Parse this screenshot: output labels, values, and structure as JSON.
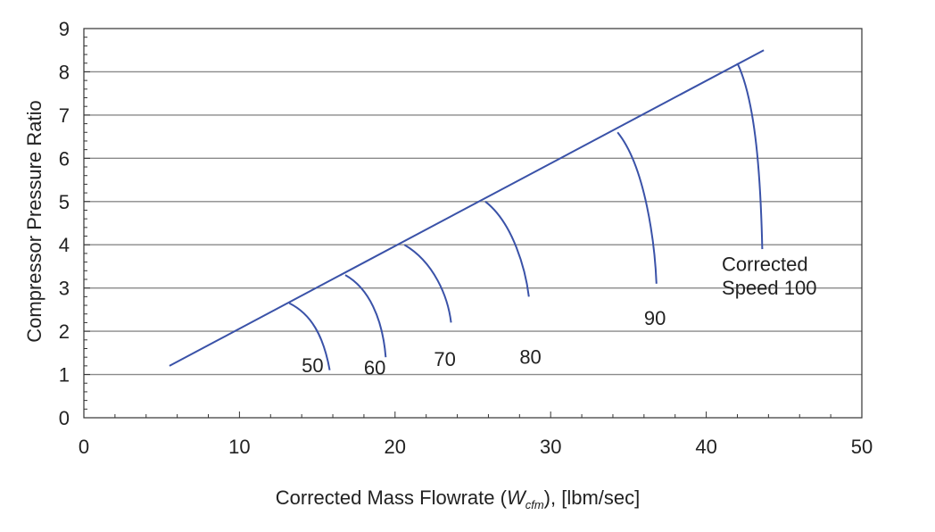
{
  "chart_data": {
    "type": "line",
    "xlabel": {
      "before": "Corrected Mass Flowrate (",
      "symbol": "W",
      "subscript": "cfm",
      "after": "), [lbm/sec]"
    },
    "ylabel": "Compressor Pressure Ratio",
    "xlim": [
      0,
      50
    ],
    "ylim": [
      0,
      9
    ],
    "x_ticks": [
      "0",
      "10",
      "20",
      "30",
      "40",
      "50"
    ],
    "y_ticks": [
      "0",
      "1",
      "2",
      "3",
      "4",
      "5",
      "6",
      "7",
      "8",
      "9"
    ],
    "grid": "horizontal",
    "colors": {
      "line": "#3a52a8",
      "grid": "#8a8a8a",
      "axis": "#333333",
      "text": "#222222"
    },
    "surge_line": [
      [
        5.5,
        1.2
      ],
      [
        43.7,
        8.5
      ]
    ],
    "series": [
      {
        "name": "50",
        "points": [
          [
            13.2,
            2.65
          ],
          [
            14.6,
            2.4
          ],
          [
            15.4,
            1.9
          ],
          [
            15.8,
            1.1
          ]
        ]
      },
      {
        "name": "60",
        "points": [
          [
            16.8,
            3.3
          ],
          [
            18.3,
            3.0
          ],
          [
            19.2,
            2.3
          ],
          [
            19.4,
            1.4
          ]
        ]
      },
      {
        "name": "70",
        "points": [
          [
            20.6,
            4.0
          ],
          [
            22.5,
            3.6
          ],
          [
            23.4,
            2.8
          ],
          [
            23.6,
            2.2
          ]
        ]
      },
      {
        "name": "80",
        "points": [
          [
            25.8,
            5.0
          ],
          [
            27.6,
            4.5
          ],
          [
            28.4,
            3.4
          ],
          [
            28.6,
            2.8
          ]
        ]
      },
      {
        "name": "90",
        "points": [
          [
            34.3,
            6.6
          ],
          [
            36.1,
            5.8
          ],
          [
            36.7,
            4.0
          ],
          [
            36.8,
            3.1
          ]
        ]
      },
      {
        "name": "Corrected Speed 100",
        "points": [
          [
            42.0,
            8.2
          ],
          [
            43.2,
            7.3
          ],
          [
            43.5,
            5.5
          ],
          [
            43.6,
            3.9
          ]
        ]
      }
    ],
    "annotations": [
      {
        "text": "50",
        "x": 14.0,
        "y": 1.05
      },
      {
        "text": "60",
        "x": 18.0,
        "y": 1.0
      },
      {
        "text": "70",
        "x": 22.5,
        "y": 1.2
      },
      {
        "text": "80",
        "x": 28.0,
        "y": 1.25
      },
      {
        "text": "90",
        "x": 36.0,
        "y": 2.15
      },
      {
        "text": "Corrected",
        "x": 41.0,
        "y": 3.4
      },
      {
        "text": "Speed 100",
        "x": 41.0,
        "y": 2.85
      }
    ]
  }
}
